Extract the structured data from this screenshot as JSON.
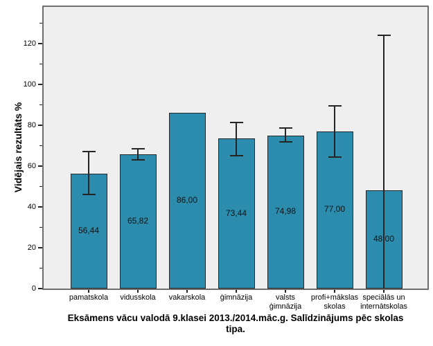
{
  "chart_data": {
    "type": "bar",
    "title": "Eksāmens vācu valodā 9.klasei 2013./2014.māc.g. Salīdzinājums pēc skolas tipa.",
    "title_lines": [
      "Eksāmens vācu valodā 9.klasei 2013./2014.māc.g. Salīdzinājums pēc skolas",
      "tipa."
    ],
    "ylabel": "Vidējais rezultāts %",
    "xlabel": "",
    "ylim": [
      0,
      138
    ],
    "yticks_major": [
      0,
      20,
      40,
      60,
      80,
      100,
      120
    ],
    "yticks_minor": [
      10,
      30,
      50,
      70,
      90,
      110,
      130
    ],
    "grid": false,
    "legend": null,
    "categories": [
      {
        "label": "pamatskola",
        "lines": [
          "pamatskola"
        ]
      },
      {
        "label": "vidusskola",
        "lines": [
          "vidusskola"
        ]
      },
      {
        "label": "vakarskola",
        "lines": [
          "vakarskola"
        ]
      },
      {
        "label": "ģimnāzija",
        "lines": [
          "ģimnāzija"
        ]
      },
      {
        "label": "valsts ģimnāzija",
        "lines": [
          "valsts",
          "ģimnāzija"
        ]
      },
      {
        "label": "profi+mākslas skolas",
        "lines": [
          "profi+mākslas",
          "skolas"
        ]
      },
      {
        "label": "speciālās un internātskolas",
        "lines": [
          "speciālās un",
          "internātskolas"
        ]
      }
    ],
    "series": [
      {
        "name": "Vidējais rezultāts %",
        "values": [
          56.44,
          65.82,
          86.0,
          73.44,
          74.98,
          77.0,
          48.0
        ],
        "value_labels": [
          "56,44",
          "65,82",
          "86,00",
          "73,44",
          "74,98",
          "77,00",
          "48,00"
        ],
        "error_bars": [
          {
            "low": 46,
            "high": 67
          },
          {
            "low": 63,
            "high": 68.5
          },
          null,
          {
            "low": 65,
            "high": 81.5
          },
          {
            "low": 72,
            "high": 78.5
          },
          {
            "low": 64.5,
            "high": 89.5
          },
          {
            "low": 0,
            "high": 124,
            "low_cap": false
          }
        ]
      }
    ],
    "colors": {
      "bar_fill": "#2b8cad",
      "bar_border": "#21262b",
      "plot_bg": "#efefef",
      "frame": "#6e6e6e",
      "error_bar": "#242424",
      "tick": "#242424",
      "text": "#000000",
      "outer_bg": "#ffffff"
    }
  }
}
